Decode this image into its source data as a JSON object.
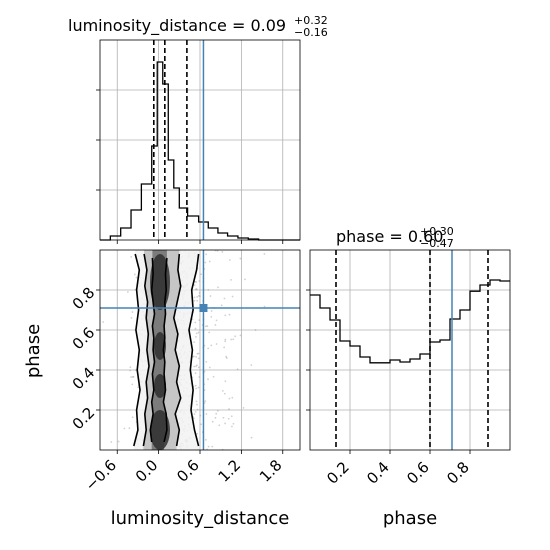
{
  "chart_data": [
    {
      "type": "histogram",
      "param": "luminosity_distance",
      "title": "luminosity_distance = 0.09",
      "title_main": "luminosity_distance = 0.09",
      "title_sup": "+0.32",
      "title_sub": "−0.16",
      "xlim": [
        -0.85,
        2.05
      ],
      "ylim": [
        0,
        1.0
      ],
      "bin_edges": [
        -0.85,
        -0.7,
        -0.55,
        -0.4,
        -0.25,
        -0.1,
        -0.02,
        0.06,
        0.14,
        0.22,
        0.3,
        0.42,
        0.58,
        0.72,
        0.86,
        1.0,
        1.15,
        1.3,
        1.45,
        1.6,
        1.75,
        1.9,
        2.05
      ],
      "counts": [
        0.0,
        0.02,
        0.06,
        0.15,
        0.28,
        0.47,
        0.89,
        0.78,
        0.4,
        0.26,
        0.16,
        0.12,
        0.09,
        0.06,
        0.035,
        0.02,
        0.01,
        0.005,
        0.0,
        0.0,
        0.0,
        0.0
      ],
      "quantiles": [
        -0.07,
        0.09,
        0.41
      ],
      "truth": 0.65
    },
    {
      "type": "histogram",
      "param": "phase",
      "title": "phase = 0.60",
      "title_main": "phase = 0.60",
      "title_sup": "+0.30",
      "title_sub": "−0.47",
      "xlim": [
        0.0,
        1.0
      ],
      "ylim": [
        0,
        1.0
      ],
      "bin_edges": [
        0.0,
        0.05,
        0.1,
        0.15,
        0.2,
        0.25,
        0.3,
        0.35,
        0.4,
        0.45,
        0.5,
        0.55,
        0.6,
        0.65,
        0.7,
        0.75,
        0.8,
        0.85,
        0.9,
        0.95,
        1.0
      ],
      "counts": [
        0.775,
        0.71,
        0.65,
        0.545,
        0.52,
        0.465,
        0.436,
        0.436,
        0.45,
        0.44,
        0.455,
        0.48,
        0.54,
        0.55,
        0.655,
        0.7,
        0.794,
        0.825,
        0.85,
        0.845
      ],
      "quantiles": [
        0.13,
        0.6,
        0.89
      ],
      "truth": 0.71
    },
    {
      "type": "scatter",
      "x_param": "luminosity_distance",
      "y_param": "phase",
      "xlabel": "luminosity_distance",
      "ylabel": "phase",
      "xlim": [
        -0.85,
        2.05
      ],
      "ylim": [
        0.0,
        1.0
      ],
      "xticks": [
        "−0.6",
        "0.0",
        "0.6",
        "1.2",
        "1.8"
      ],
      "xtick_values": [
        -0.6,
        0.0,
        0.6,
        1.2,
        1.8
      ],
      "yticks": [
        "0.2",
        "0.4",
        "0.6",
        "0.8"
      ],
      "ytick_values": [
        0.2,
        0.4,
        0.6,
        0.8
      ],
      "truth": [
        0.65,
        0.71
      ],
      "contour_levels": [
        0.39,
        0.86,
        0.99
      ],
      "contours": [
        {
          "level": 0.39,
          "left": [
            [
              0.04,
              -0.1
            ],
            [
              0.1,
              -0.12
            ],
            [
              0.18,
              -0.08
            ],
            [
              0.24,
              -0.1
            ],
            [
              0.3,
              -0.07
            ],
            [
              0.38,
              -0.09
            ],
            [
              0.44,
              -0.06
            ],
            [
              0.5,
              -0.08
            ],
            [
              0.56,
              -0.07
            ],
            [
              0.62,
              -0.09
            ],
            [
              0.68,
              -0.06
            ],
            [
              0.74,
              -0.08
            ],
            [
              0.8,
              -0.1
            ],
            [
              0.88,
              -0.08
            ],
            [
              0.96,
              -0.09
            ]
          ],
          "right": [
            [
              0.04,
              0.08
            ],
            [
              0.1,
              0.12
            ],
            [
              0.18,
              0.11
            ],
            [
              0.24,
              0.07
            ],
            [
              0.3,
              0.1
            ],
            [
              0.38,
              0.08
            ],
            [
              0.44,
              0.09
            ],
            [
              0.5,
              0.07
            ],
            [
              0.56,
              0.09
            ],
            [
              0.62,
              0.08
            ],
            [
              0.68,
              0.1
            ],
            [
              0.74,
              0.09
            ],
            [
              0.8,
              0.11
            ],
            [
              0.88,
              0.1
            ],
            [
              0.96,
              0.12
            ]
          ]
        },
        {
          "level": 0.86,
          "left": [
            [
              0.02,
              -0.22
            ],
            [
              0.1,
              -0.18
            ],
            [
              0.18,
              -0.2
            ],
            [
              0.26,
              -0.16
            ],
            [
              0.34,
              -0.18
            ],
            [
              0.42,
              -0.14
            ],
            [
              0.5,
              -0.17
            ],
            [
              0.58,
              -0.15
            ],
            [
              0.66,
              -0.18
            ],
            [
              0.74,
              -0.16
            ],
            [
              0.82,
              -0.2
            ],
            [
              0.9,
              -0.17
            ],
            [
              0.98,
              -0.21
            ]
          ],
          "right": [
            [
              0.02,
              0.26
            ],
            [
              0.1,
              0.3
            ],
            [
              0.18,
              0.24
            ],
            [
              0.26,
              0.32
            ],
            [
              0.34,
              0.26
            ],
            [
              0.42,
              0.3
            ],
            [
              0.5,
              0.24
            ],
            [
              0.58,
              0.28
            ],
            [
              0.66,
              0.22
            ],
            [
              0.74,
              0.27
            ],
            [
              0.82,
              0.32
            ],
            [
              0.9,
              0.28
            ],
            [
              0.98,
              0.3
            ]
          ]
        },
        {
          "level": 0.99,
          "left": [
            [
              0.02,
              -0.36
            ],
            [
              0.1,
              -0.3
            ],
            [
              0.2,
              -0.32
            ],
            [
              0.3,
              -0.27
            ],
            [
              0.4,
              -0.31
            ],
            [
              0.5,
              -0.28
            ],
            [
              0.6,
              -0.33
            ],
            [
              0.7,
              -0.29
            ],
            [
              0.8,
              -0.32
            ],
            [
              0.9,
              -0.28
            ],
            [
              0.98,
              -0.34
            ]
          ],
          "right": [
            [
              0.02,
              0.58
            ],
            [
              0.1,
              0.52
            ],
            [
              0.2,
              0.47
            ],
            [
              0.3,
              0.5
            ],
            [
              0.4,
              0.46
            ],
            [
              0.5,
              0.49
            ],
            [
              0.6,
              0.44
            ],
            [
              0.7,
              0.5
            ],
            [
              0.8,
              0.48
            ],
            [
              0.9,
              0.55
            ],
            [
              0.98,
              0.58
            ]
          ]
        }
      ]
    }
  ],
  "panels": {
    "hist_x_ticks": [
      "−0.6",
      "0.0",
      "0.6",
      "1.2",
      "1.8"
    ],
    "phase_x_ticks": [
      "0.2",
      "0.4",
      "0.6",
      "0.8"
    ],
    "phase_xlabel": "phase"
  },
  "colors": {
    "truth": "#4682b4",
    "line": "#000000",
    "grid": "#b0b0b0",
    "scatter": "#9a9a9a"
  }
}
